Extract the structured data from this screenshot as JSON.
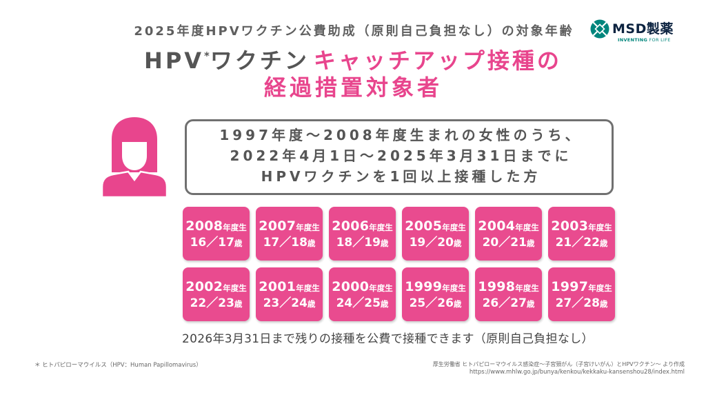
{
  "header": {
    "subtitle": "2025年度HPVワクチン公費助成（原則自己負担なし）の対象年齢"
  },
  "logo": {
    "icon": "msd-emblem-icon",
    "brand": "MSD製薬",
    "tagline_primary": "INVENTING",
    "tagline_secondary": "FOR LIFE"
  },
  "title": {
    "hpv": "HPV",
    "asterisk": "*",
    "vaccine": "ワクチン",
    "catchup": "キャッチアップ接種の",
    "line2": "経過措置対象者"
  },
  "person_icon": "woman-icon",
  "criteria": {
    "line1": "1997年度～2008年度生まれの女性のうち、",
    "line2": "2022年4月1日～2025年3月31日までに",
    "line3": "HPVワクチンを1回以上接種した方"
  },
  "tiles": [
    {
      "year": "2008",
      "year_suffix": "年度生",
      "ages": "16／17",
      "age_suffix": "歳"
    },
    {
      "year": "2007",
      "year_suffix": "年度生",
      "ages": "17／18",
      "age_suffix": "歳"
    },
    {
      "year": "2006",
      "year_suffix": "年度生",
      "ages": "18／19",
      "age_suffix": "歳"
    },
    {
      "year": "2005",
      "year_suffix": "年度生",
      "ages": "19／20",
      "age_suffix": "歳"
    },
    {
      "year": "2004",
      "year_suffix": "年度生",
      "ages": "20／21",
      "age_suffix": "歳"
    },
    {
      "year": "2003",
      "year_suffix": "年度生",
      "ages": "21／22",
      "age_suffix": "歳"
    },
    {
      "year": "2002",
      "year_suffix": "年度生",
      "ages": "22／23",
      "age_suffix": "歳"
    },
    {
      "year": "2001",
      "year_suffix": "年度生",
      "ages": "23／24",
      "age_suffix": "歳"
    },
    {
      "year": "2000",
      "year_suffix": "年度生",
      "ages": "24／25",
      "age_suffix": "歳"
    },
    {
      "year": "1999",
      "year_suffix": "年度生",
      "ages": "25／26",
      "age_suffix": "歳"
    },
    {
      "year": "1998",
      "year_suffix": "年度生",
      "ages": "26／27",
      "age_suffix": "歳"
    },
    {
      "year": "1997",
      "year_suffix": "年度生",
      "ages": "27／28",
      "age_suffix": "歳"
    }
  ],
  "note": "2026年3月31日まで残りの接種を公費で接種できます（原則自己負担なし）",
  "footnote": "＊ ヒトパピローマウイルス（HPV：Human Papillomavirus）",
  "source": {
    "credit": "厚生労働省 ヒトパピローマウイルス感染症～子宮頸がん（子宮けいがん）とHPVワクチン～ より作成",
    "url": "https://www.mhlw.go.jp/bunya/kenkou/kekkaku-kansenshou28/index.html"
  },
  "colors": {
    "accent_pink": "#E8458D",
    "tile_pink": "#E94B8F",
    "text_gray": "#555555",
    "border_gray": "#707070",
    "logo_teal": "#00857C",
    "logo_navy": "#0C2340"
  }
}
